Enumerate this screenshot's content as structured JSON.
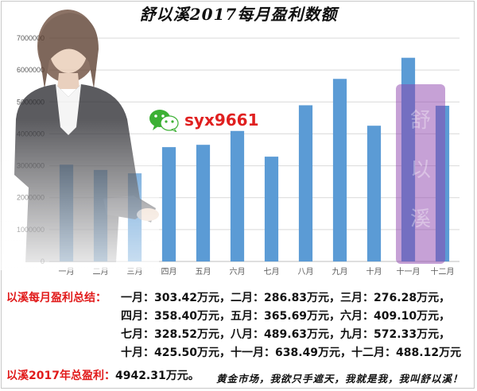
{
  "chart_data": {
    "type": "bar",
    "title": "舒以溪2017每月盈利数额",
    "categories": [
      "一月",
      "二月",
      "三月",
      "四月",
      "五月",
      "六月",
      "七月",
      "八月",
      "九月",
      "十月",
      "十一月",
      "十二月"
    ],
    "values": [
      3034200,
      2868300,
      2762800,
      3584000,
      3656900,
      4091000,
      3285200,
      4896300,
      5723300,
      4255000,
      6384900,
      4881200
    ],
    "ylim": [
      0,
      7000000
    ],
    "yticks": [
      0,
      1000000,
      2000000,
      3000000,
      4000000,
      5000000,
      6000000,
      7000000
    ],
    "xlabel": "",
    "ylabel": "",
    "grid": true,
    "bar_color": "#5b9bd5"
  },
  "watermark": {
    "wechat_id": "syx9661",
    "wechat_icon": "wechat-icon"
  },
  "summary": {
    "label": "以溪每月盈利总结：",
    "rows": [
      "一月：303.42万元，二月：286.83万元，三月：276.28万元，",
      "四月：358.40万元，五月：365.69万元，六月：409.10万元，",
      "七月：328.52万元，八月：489.63万元，九月：572.33万元，",
      "十月：425.50万元，十一月：638.49万元，十二月：488.12万元"
    ]
  },
  "total": {
    "label": "以溪2017年总盈利：",
    "value": "4942.31万元。"
  },
  "slogan": "黄金市场，我欲只手遮天，我就是我，我叫舒以溪！",
  "colors": {
    "accent_red": "#e11b1b",
    "bar": "#5b9bd5",
    "grid": "#d9d9d9"
  }
}
